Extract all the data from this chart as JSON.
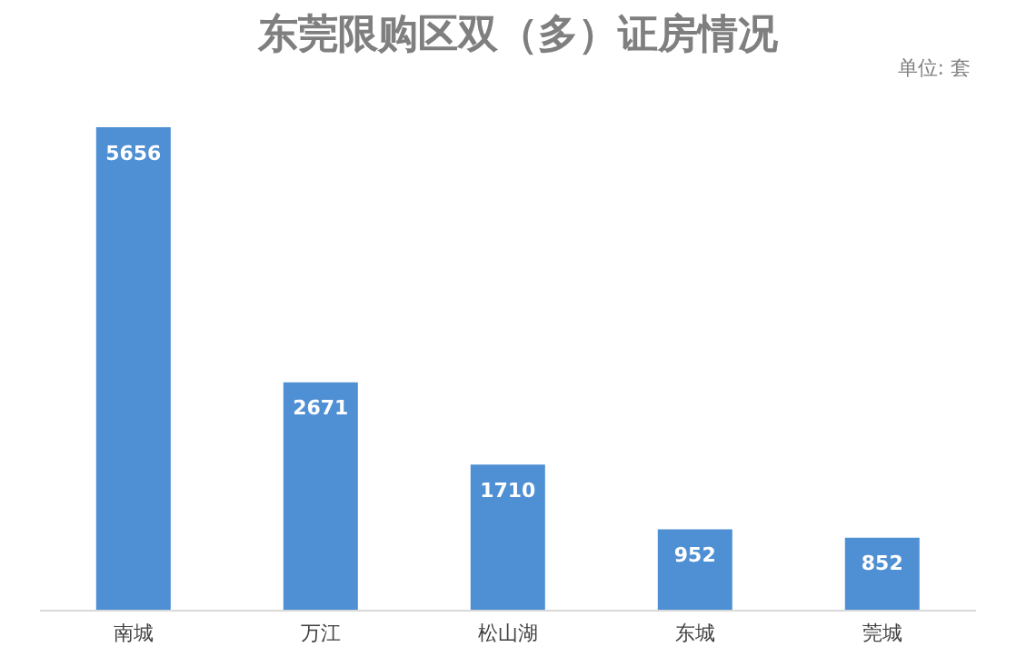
{
  "chart_data": {
    "type": "bar",
    "title": "东莞限购区双（多）证房情况",
    "annotations": [
      "单位: 套"
    ],
    "categories": [
      "南城",
      "万江",
      "松山湖",
      "东城",
      "莞城"
    ],
    "values": [
      5656,
      2671,
      1710,
      952,
      852
    ],
    "color": "#4f8fd4",
    "data_labels": true
  }
}
